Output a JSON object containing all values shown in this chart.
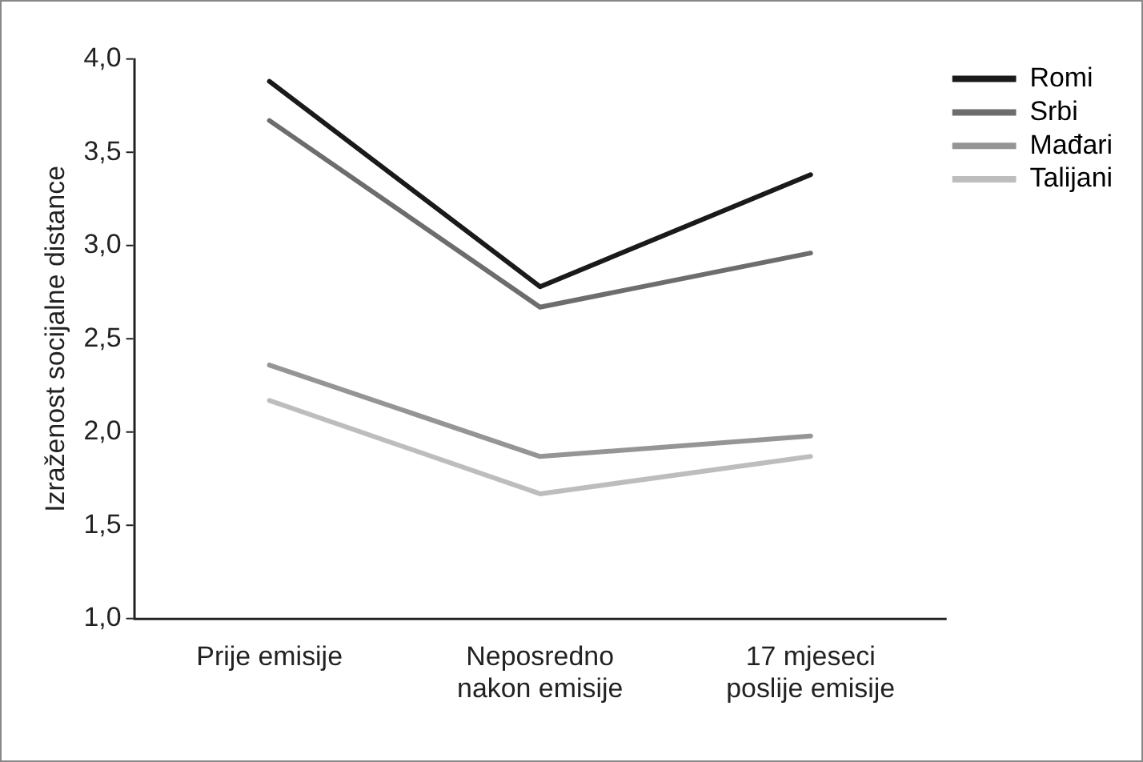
{
  "chart_data": {
    "type": "line",
    "ylabel": "Izraženost socijalne distance",
    "categories": [
      "Prije emisije",
      "Neposredno nakon emisije",
      "17 mjeseci poslije emisije"
    ],
    "series": [
      {
        "name": "Romi",
        "color": "#1a1a1a",
        "values": [
          3.88,
          2.78,
          3.38
        ]
      },
      {
        "name": "Srbi",
        "color": "#6d6d6f",
        "values": [
          3.67,
          2.67,
          2.96
        ]
      },
      {
        "name": "Mađari",
        "color": "#959595",
        "values": [
          2.36,
          1.87,
          1.98
        ]
      },
      {
        "name": "Talijani",
        "color": "#bdbdbd",
        "values": [
          2.17,
          1.67,
          1.87
        ]
      }
    ],
    "ylim": [
      1,
      4
    ],
    "yticks": [
      {
        "value": 1,
        "label": "1,0"
      },
      {
        "value": 1.5,
        "label": "1,5"
      },
      {
        "value": 2,
        "label": "2,0"
      },
      {
        "value": 2.5,
        "label": "2,5"
      },
      {
        "value": 3,
        "label": "3,0"
      },
      {
        "value": 3.5,
        "label": "3,5"
      },
      {
        "value": 4,
        "label": "4,0"
      }
    ],
    "grid": false,
    "legend": "top right",
    "marker": "none",
    "line_style": "solid"
  }
}
